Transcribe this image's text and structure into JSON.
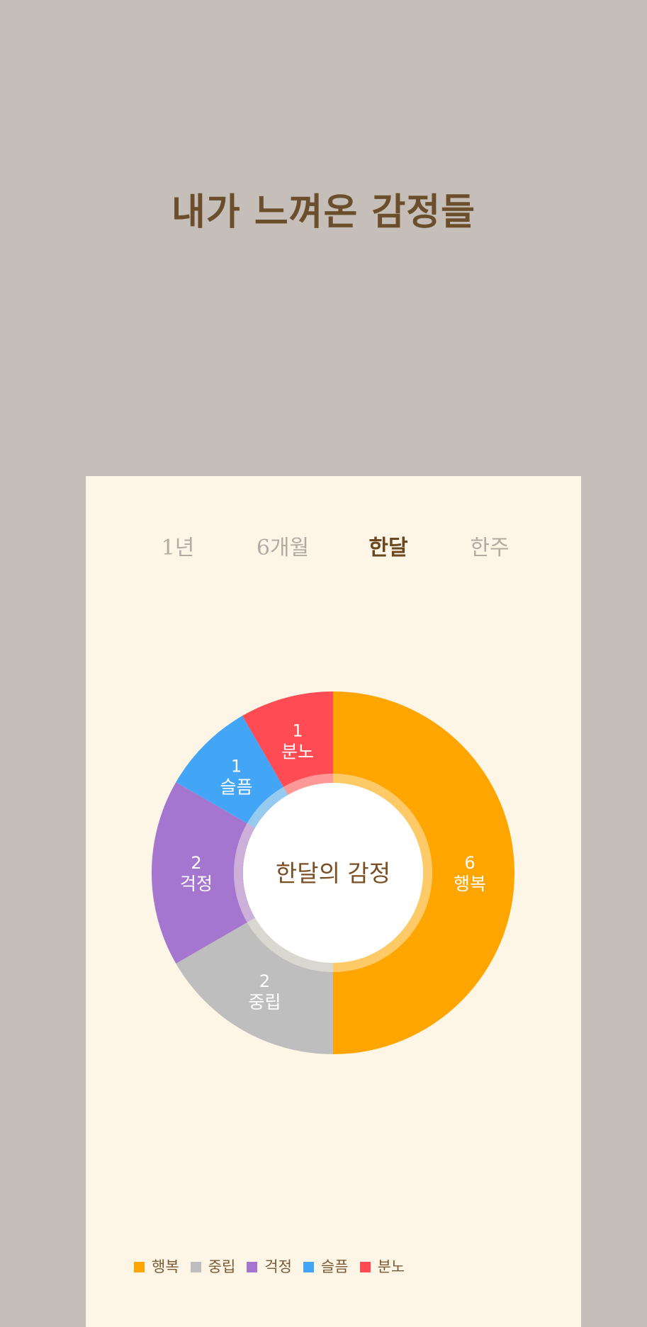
{
  "page": {
    "title": "내가 느껴온 감정들"
  },
  "tabs": [
    {
      "label": "1년",
      "active": false
    },
    {
      "label": "6개월",
      "active": false
    },
    {
      "label": "한달",
      "active": true
    },
    {
      "label": "한주",
      "active": false
    }
  ],
  "chart_data": {
    "type": "pie",
    "donut": true,
    "center_label": "한달의 감정",
    "categories": [
      "행복",
      "중립",
      "걱정",
      "슬픔",
      "분노"
    ],
    "values": [
      6,
      2,
      2,
      1,
      1
    ],
    "colors": [
      "#ffa500",
      "#bebebe",
      "#a576cf",
      "#42a5f5",
      "#ff4b54"
    ],
    "legend_position": "bottom-left"
  },
  "colors": {
    "background": "#c6beb8",
    "card": "#fdf5e6",
    "title": "#6b4f2c",
    "tab_active": "#6b4720",
    "tab_inactive": "#b2aba4"
  }
}
